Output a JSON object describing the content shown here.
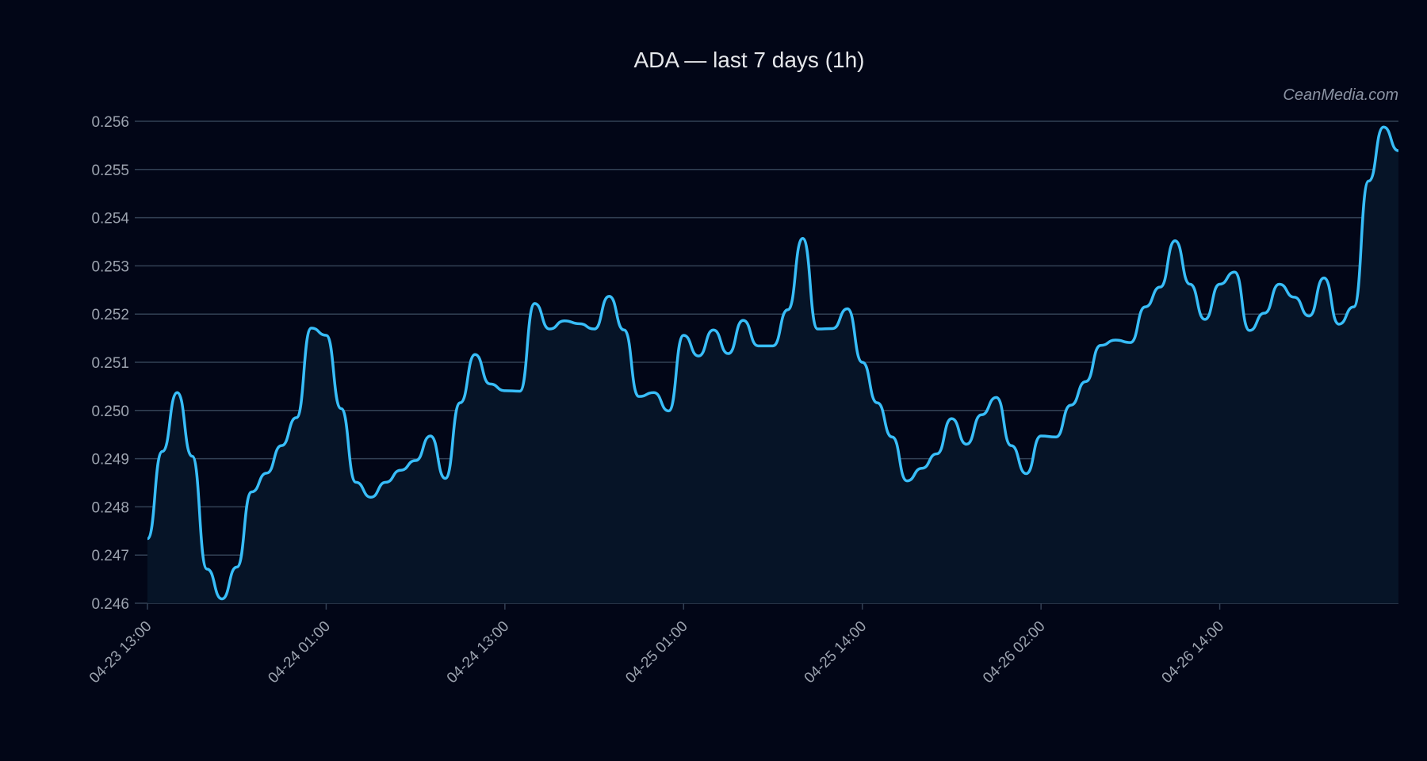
{
  "chart_data": {
    "type": "area",
    "title": "ADA — last 7 days (1h)",
    "watermark": "CeanMedia.com",
    "xlabel": "",
    "ylabel": "",
    "ylim": [
      0.246,
      0.256
    ],
    "y_ticks": [
      "0.246",
      "0.247",
      "0.248",
      "0.249",
      "0.250",
      "0.251",
      "0.252",
      "0.253",
      "0.254",
      "0.255",
      "0.256"
    ],
    "x_ticks": [
      {
        "index": 0,
        "label": "04-23 13:00"
      },
      {
        "index": 12,
        "label": "04-24 01:00"
      },
      {
        "index": 24,
        "label": "04-24 13:00"
      },
      {
        "index": 36,
        "label": "04-25 01:00"
      },
      {
        "index": 48,
        "label": "04-25 14:00"
      },
      {
        "index": 60,
        "label": "04-26 02:00"
      },
      {
        "index": 72,
        "label": "04-26 14:00"
      }
    ],
    "grid": true,
    "line_color": "#38bdf8",
    "fill_color": "#061427",
    "background": "#020617",
    "values": [
      0.24734,
      0.24915,
      0.25037,
      0.24905,
      0.24671,
      0.24609,
      0.24675,
      0.24831,
      0.2487,
      0.24927,
      0.24985,
      0.25171,
      0.25156,
      0.25004,
      0.24851,
      0.2482,
      0.24851,
      0.24876,
      0.24896,
      0.24947,
      0.24859,
      0.25016,
      0.25116,
      0.25055,
      0.25041,
      0.2504,
      0.25222,
      0.25169,
      0.25186,
      0.2518,
      0.25169,
      0.25237,
      0.25167,
      0.25029,
      0.25037,
      0.24999,
      0.25156,
      0.25113,
      0.25167,
      0.25118,
      0.25187,
      0.25134,
      0.25134,
      0.25209,
      0.25357,
      0.25169,
      0.2517,
      0.25211,
      0.251,
      0.25016,
      0.24945,
      0.24854,
      0.2488,
      0.2491,
      0.24983,
      0.2493,
      0.24991,
      0.25027,
      0.24927,
      0.24869,
      0.24947,
      0.24945,
      0.25011,
      0.2506,
      0.25135,
      0.25146,
      0.25141,
      0.25215,
      0.25256,
      0.25352,
      0.25262,
      0.25189,
      0.25262,
      0.25287,
      0.25166,
      0.25202,
      0.25262,
      0.25235,
      0.25196,
      0.25275,
      0.25179,
      0.25215,
      0.25476,
      0.25588,
      0.25539
    ]
  }
}
